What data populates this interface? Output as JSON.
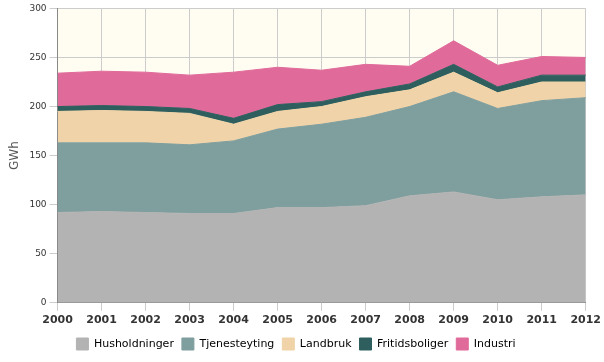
{
  "chart_data": {
    "type": "area",
    "categories": [
      "2000",
      "2001",
      "2002",
      "2003",
      "2004",
      "2005",
      "2006",
      "2007",
      "2008",
      "2009",
      "2010",
      "2011",
      "2012"
    ],
    "y_label": "GWh",
    "series": [
      {
        "name": "Husholdninger",
        "color": "#b3b3b3",
        "values": [
          92,
          93,
          92,
          91,
          91,
          97,
          97,
          99,
          109,
          113,
          105,
          108,
          110
        ]
      },
      {
        "name": "Tjenesteyting",
        "color": "#7f9e9e",
        "values": [
          71,
          70,
          71,
          70,
          74,
          80,
          85,
          90,
          91,
          102,
          93,
          98,
          99
        ]
      },
      {
        "name": "Landbruk",
        "color": "#f0d3a8",
        "values": [
          32,
          33,
          32,
          32,
          17,
          18,
          18,
          21,
          17,
          20,
          16,
          19,
          16
        ]
      },
      {
        "name": "Fritidsboliger",
        "color": "#2e5e5e",
        "values": [
          5,
          5,
          5,
          5,
          6,
          7,
          5,
          5,
          6,
          8,
          6,
          7,
          7
        ]
      },
      {
        "name": "Industri",
        "color": "#e06b9a",
        "values": [
          34,
          35,
          35,
          34,
          47,
          38,
          32,
          28,
          18,
          24,
          22,
          19,
          18
        ]
      }
    ],
    "ylim": [
      0,
      300
    ],
    "yticks": [
      0,
      50,
      100,
      150,
      200,
      250,
      300
    ],
    "stacked": true,
    "grid": true,
    "legend": "bottom"
  }
}
